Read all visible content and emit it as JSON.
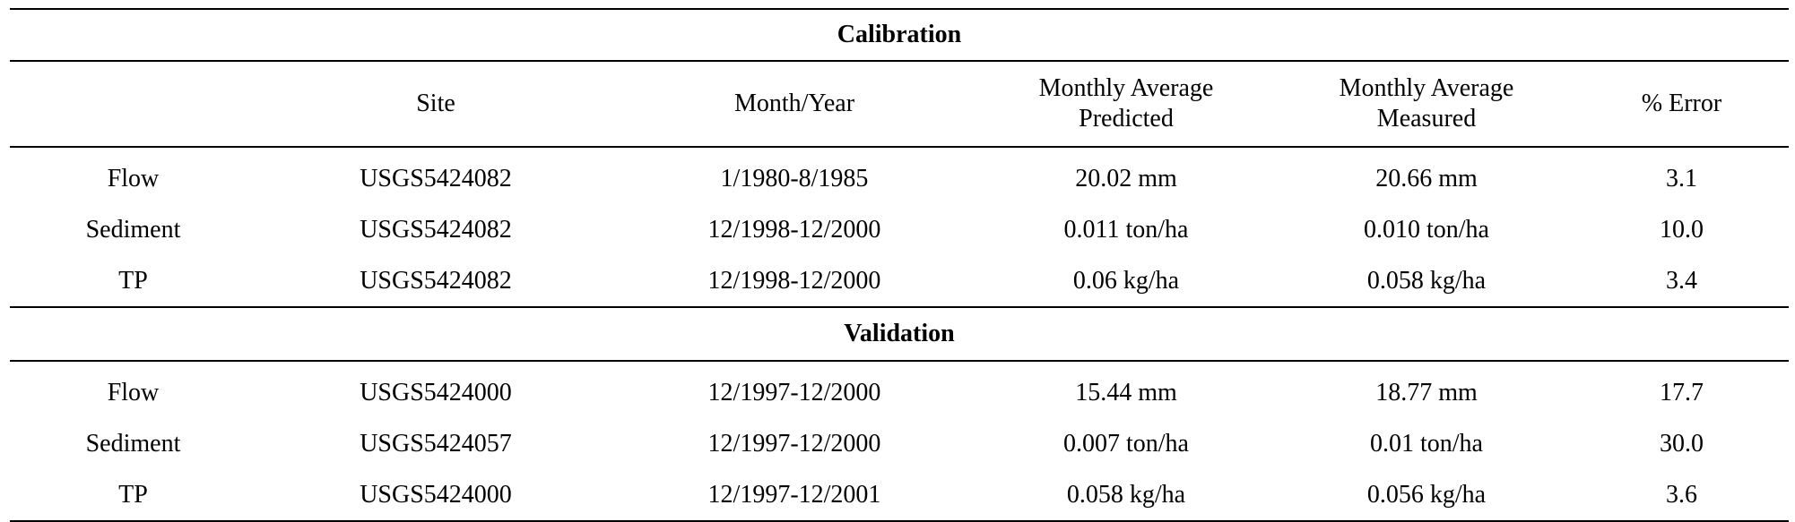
{
  "table": {
    "sections": [
      {
        "title": "Calibration",
        "headers": [
          "",
          "Site",
          "Month/Year",
          "Monthly Average\nPredicted",
          "Monthly Average\nMeasured",
          "% Error"
        ],
        "rows": [
          [
            "Flow",
            "USGS5424082",
            "1/1980-8/1985",
            "20.02 mm",
            "20.66 mm",
            "3.1"
          ],
          [
            "Sediment",
            "USGS5424082",
            "12/1998-12/2000",
            "0.011 ton/ha",
            "0.010 ton/ha",
            "10.0"
          ],
          [
            "TP",
            "USGS5424082",
            "12/1998-12/2000",
            "0.06 kg/ha",
            "0.058 kg/ha",
            "3.4"
          ]
        ]
      },
      {
        "title": "Validation",
        "rows": [
          [
            "Flow",
            "USGS5424000",
            "12/1997-12/2000",
            "15.44 mm",
            "18.77 mm",
            "17.7"
          ],
          [
            "Sediment",
            "USGS5424057",
            "12/1997-12/2000",
            "0.007 ton/ha",
            "0.01 ton/ha",
            "30.0"
          ],
          [
            "TP",
            "USGS5424000",
            "12/1997-12/2001",
            "0.058 kg/ha",
            "0.056 kg/ha",
            "3.6"
          ]
        ]
      }
    ]
  }
}
